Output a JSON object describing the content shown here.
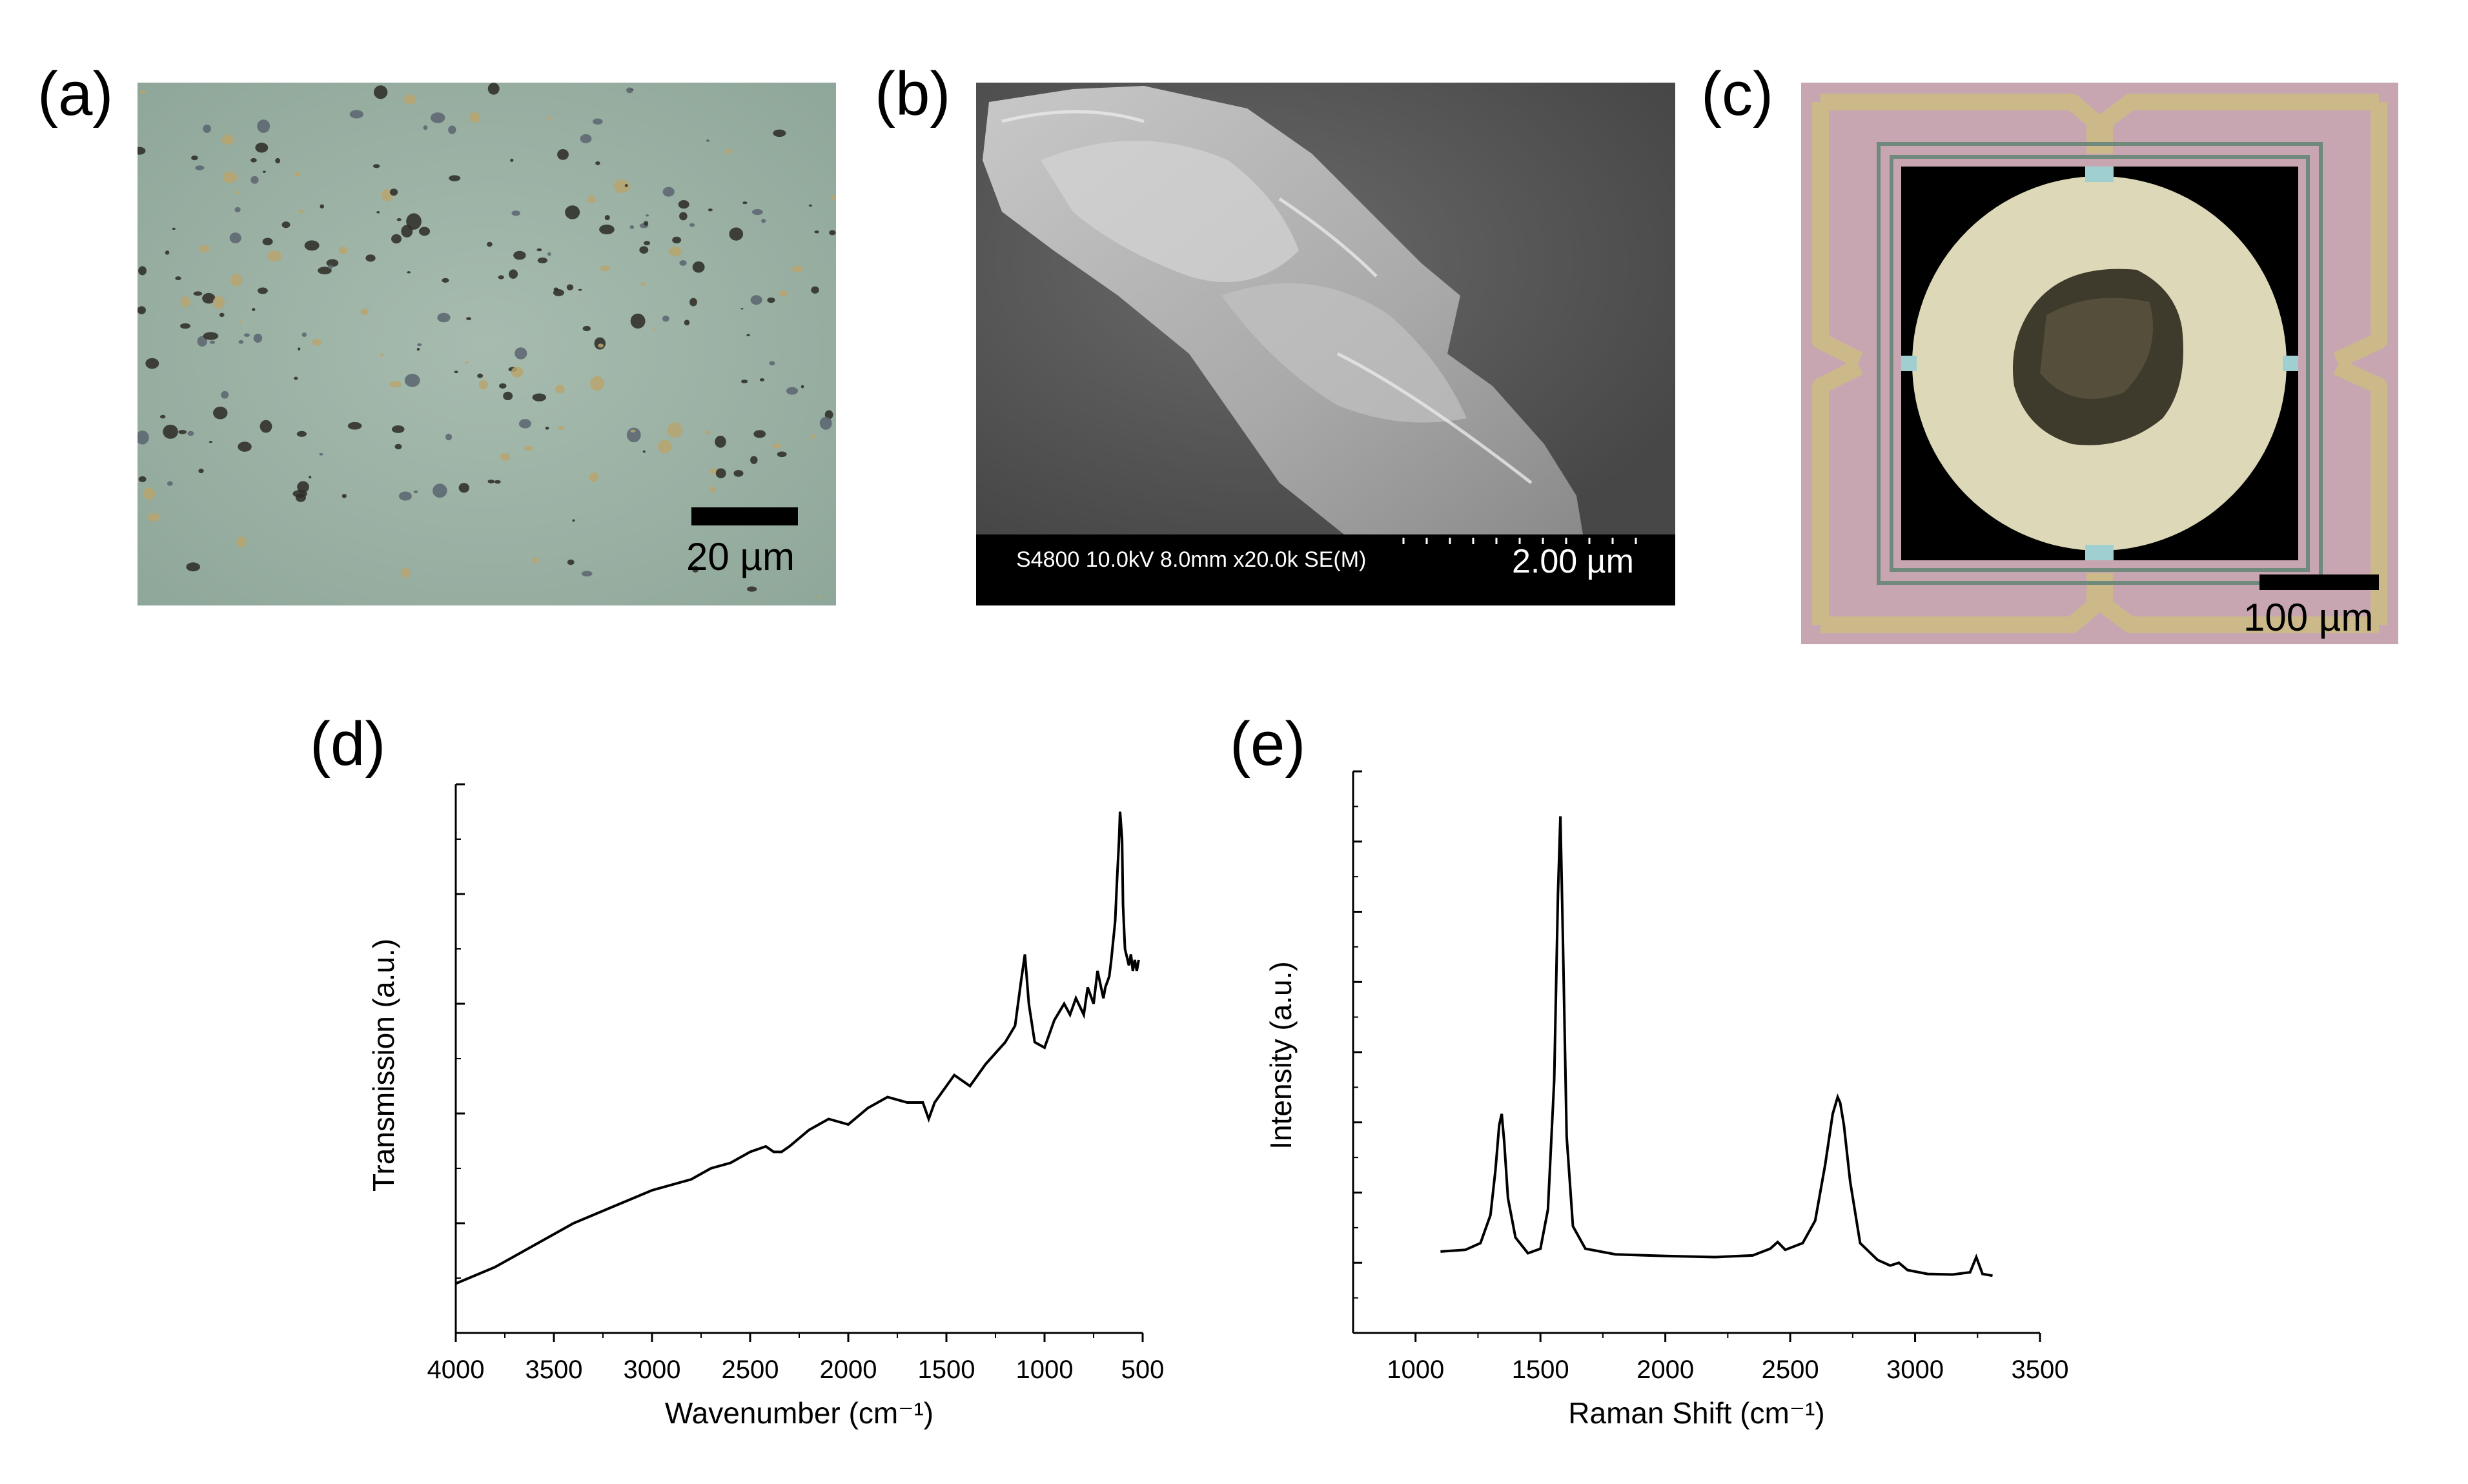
{
  "panels": {
    "a": {
      "label": "(a)",
      "scale_text": "20 µm",
      "image": "optical micrograph of dispersed flakes"
    },
    "b": {
      "label": "(b)",
      "sem_info": "S4800 10.0kV 8.0mm x20.0k SE(M)",
      "scale_text": "2.00 µm",
      "image": "SEM image of layered flake"
    },
    "c": {
      "label": "(c)",
      "scale_text": "100 µm",
      "image": "optical micrograph of sample on MEMS heater chip"
    },
    "d": {
      "label": "(d)"
    },
    "e": {
      "label": "(e)"
    }
  },
  "colors": {
    "line": "#000000",
    "sem_bar": "#000000",
    "chip_pink": "#c9a9b5",
    "chip_gold": "#c8b78a",
    "disk": "#ddd9b8"
  },
  "chart_data": [
    {
      "type": "line",
      "panel": "d",
      "xlabel": "Wavenumber (cm⁻¹)",
      "ylabel": "Transmission (a.u.)",
      "xlim": [
        4000,
        500
      ],
      "x_reversed": true,
      "xticks": [
        4000,
        3500,
        3000,
        2500,
        2000,
        1500,
        1000,
        500
      ],
      "xtick_labels": [
        "4000",
        "3500",
        "3000",
        "2500",
        "2000",
        "1500",
        "1000",
        "500"
      ],
      "ylim": [
        0,
        1
      ],
      "y_tick_labels_shown": false,
      "series": [
        {
          "x": [
            4000,
            3800,
            3600,
            3400,
            3200,
            3000,
            2800,
            2700,
            2600,
            2500,
            2420,
            2380,
            2340,
            2300,
            2200,
            2100,
            2000,
            1900,
            1800,
            1700,
            1620,
            1590,
            1560,
            1500,
            1460,
            1420,
            1380,
            1300,
            1200,
            1150,
            1120,
            1100,
            1080,
            1050,
            1000,
            950,
            900,
            870,
            840,
            800,
            780,
            750,
            730,
            700,
            690,
            670,
            660,
            640,
            630,
            620,
            615,
            605,
            600,
            590,
            570,
            560,
            550,
            540,
            530,
            520
          ],
          "y": [
            0.09,
            0.12,
            0.16,
            0.2,
            0.23,
            0.26,
            0.28,
            0.3,
            0.31,
            0.33,
            0.34,
            0.33,
            0.33,
            0.34,
            0.37,
            0.39,
            0.38,
            0.41,
            0.43,
            0.42,
            0.42,
            0.39,
            0.42,
            0.45,
            0.47,
            0.46,
            0.45,
            0.49,
            0.53,
            0.56,
            0.64,
            0.69,
            0.6,
            0.53,
            0.52,
            0.57,
            0.6,
            0.58,
            0.61,
            0.58,
            0.63,
            0.6,
            0.66,
            0.61,
            0.63,
            0.65,
            0.68,
            0.75,
            0.83,
            0.9,
            0.95,
            0.9,
            0.78,
            0.7,
            0.67,
            0.69,
            0.66,
            0.68,
            0.66,
            0.68
          ]
        }
      ]
    },
    {
      "type": "line",
      "panel": "e",
      "xlabel": "Raman Shift (cm⁻¹)",
      "ylabel": "Intensity (a.u.)",
      "xlim": [
        750,
        3500
      ],
      "xticks": [
        1000,
        1500,
        2000,
        2500,
        3000,
        3500
      ],
      "xtick_labels": [
        "1000",
        "1500",
        "2000",
        "2500",
        "3000",
        "3500"
      ],
      "ylim": [
        0,
        1
      ],
      "y_tick_labels_shown": false,
      "series": [
        {
          "x": [
            1100,
            1200,
            1260,
            1300,
            1320,
            1335,
            1345,
            1355,
            1370,
            1400,
            1450,
            1500,
            1530,
            1555,
            1570,
            1580,
            1590,
            1605,
            1630,
            1680,
            1800,
            2000,
            2200,
            2350,
            2420,
            2450,
            2480,
            2550,
            2600,
            2640,
            2670,
            2690,
            2700,
            2715,
            2740,
            2780,
            2850,
            2900,
            2935,
            2970,
            3050,
            3150,
            3220,
            3245,
            3270,
            3310
          ],
          "y": [
            0.145,
            0.148,
            0.16,
            0.21,
            0.29,
            0.37,
            0.39,
            0.34,
            0.24,
            0.17,
            0.142,
            0.15,
            0.22,
            0.45,
            0.78,
            0.92,
            0.7,
            0.35,
            0.19,
            0.15,
            0.14,
            0.137,
            0.135,
            0.138,
            0.15,
            0.162,
            0.148,
            0.16,
            0.2,
            0.3,
            0.39,
            0.42,
            0.41,
            0.37,
            0.27,
            0.16,
            0.13,
            0.12,
            0.125,
            0.112,
            0.105,
            0.104,
            0.108,
            0.135,
            0.105,
            0.102
          ]
        }
      ]
    }
  ]
}
